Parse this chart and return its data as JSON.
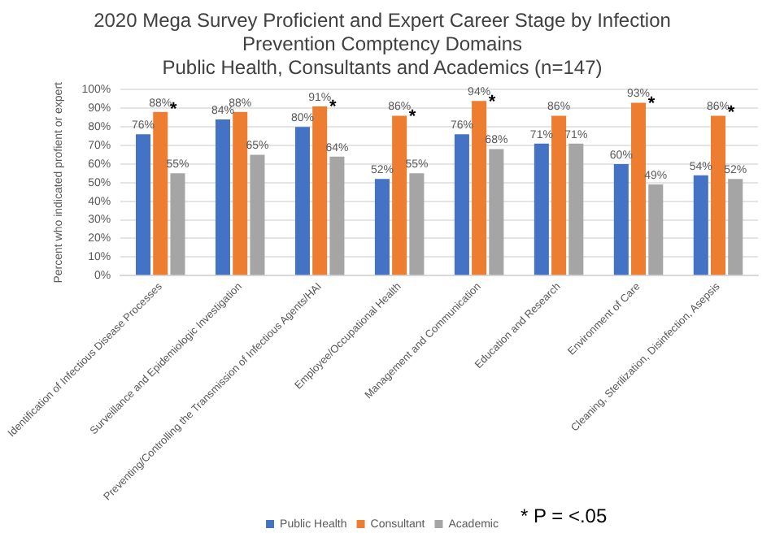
{
  "chart_data": {
    "type": "bar",
    "title": "2020 Mega Survey Proficient and Expert Career Stage by Infection Prevention Comptency Domains",
    "subtitle": "Public Health, Consultants and Academics (n=147)",
    "ylabel": "Percent who indicated profient or expert",
    "categories": [
      "Identification of Infectious Disease Processes",
      "Surveillance and Epidemiologic Investigation",
      "Preventing/Controlling the Transmission of Infectious Agents/HAI",
      "Employee/Occupational Health",
      "Management and Communication",
      "Education and Research",
      "Environment of Care",
      "Cleaning, Sterilization, Disinfection, Asepsis"
    ],
    "series": [
      {
        "name": "Public Health",
        "color": "#4472c4",
        "values": [
          76,
          84,
          80,
          52,
          76,
          71,
          60,
          54
        ],
        "value_labels": [
          "76%",
          "84%",
          "80%",
          "52%",
          "76%",
          "71%",
          "60%",
          "54%"
        ]
      },
      {
        "name": "Consultant",
        "color": "#ed7d31",
        "values": [
          88,
          88,
          91,
          86,
          94,
          86,
          93,
          86
        ],
        "value_labels": [
          "88%",
          "88%",
          "91%",
          "86%",
          "94%",
          "86%",
          "93%",
          "86%"
        ]
      },
      {
        "name": "Academic",
        "color": "#a5a5a5",
        "values": [
          55,
          65,
          64,
          55,
          68,
          71,
          49,
          52
        ],
        "value_labels": [
          "55%",
          "65%",
          "64%",
          "55%",
          "68%",
          "71%",
          "49%",
          "52%"
        ]
      }
    ],
    "ylim": [
      0,
      100
    ],
    "yticks": [
      {
        "value": 0,
        "label": "0%"
      },
      {
        "value": 10,
        "label": "10%"
      },
      {
        "value": 20,
        "label": "20%"
      },
      {
        "value": 30,
        "label": "30%"
      },
      {
        "value": 40,
        "label": "40%"
      },
      {
        "value": 50,
        "label": "50%"
      },
      {
        "value": 60,
        "label": "60%"
      },
      {
        "value": 70,
        "label": "70%"
      },
      {
        "value": 80,
        "label": "80%"
      },
      {
        "value": 90,
        "label": "90%"
      },
      {
        "value": 100,
        "label": "100%"
      }
    ],
    "grid": "y",
    "legend": "bottom",
    "annotations": [
      {
        "text": "*",
        "x": "Identification of Infectious Disease Processes",
        "y": 92
      },
      {
        "text": "*",
        "x": "Preventing/Controlling the Transmission of Infectious Agents/HAI",
        "y": 93
      },
      {
        "text": "*",
        "x": "Employee/Occupational Health",
        "y": 88
      },
      {
        "text": "*",
        "x": "Management and Communication",
        "y": 96
      },
      {
        "text": "*",
        "x": "Environment of Care",
        "y": 95
      },
      {
        "text": "*",
        "x": "Cleaning, Sterilization, Disinfection, Asepsis",
        "y": 90
      },
      "* P = <.05"
    ]
  }
}
